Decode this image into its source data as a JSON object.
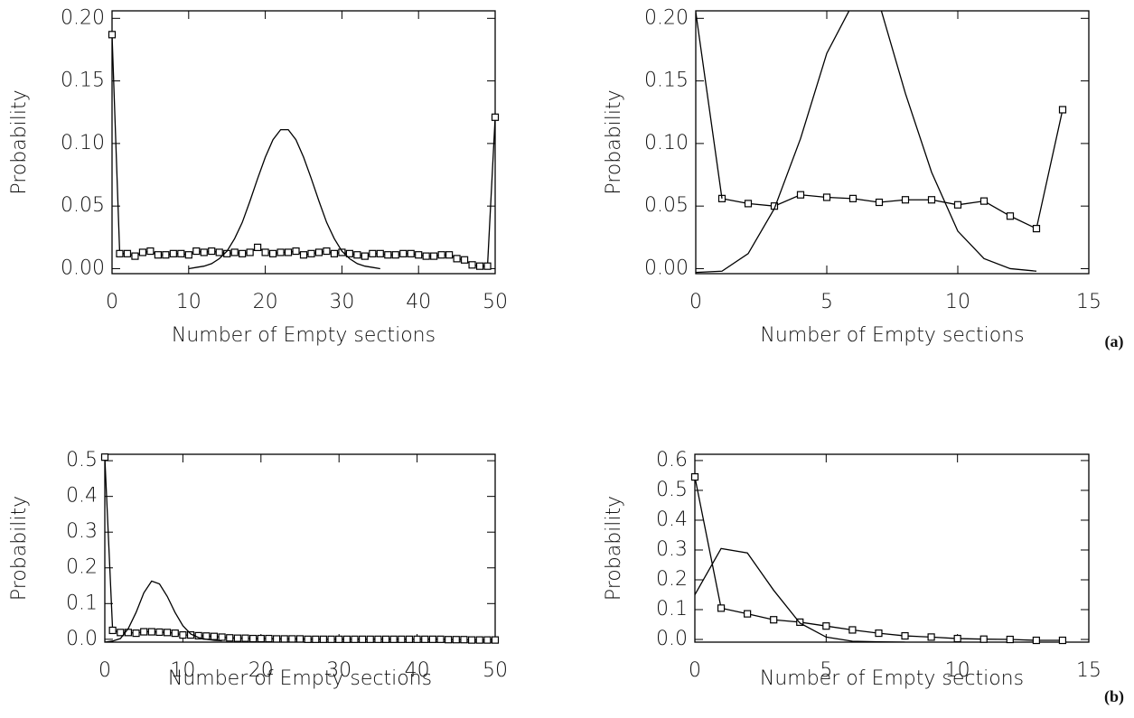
{
  "chart_data": [
    {
      "type": "line",
      "xlabel": "Number of Empty sections",
      "ylabel": "Probability",
      "xlim": [
        0,
        50
      ],
      "ylim": [
        -0.004,
        0.206
      ],
      "xticks": [
        0,
        10,
        20,
        30,
        40,
        50
      ],
      "yticks": [
        {
          "value": 0,
          "label": "0.00"
        },
        0.05,
        {
          "value": 0.1,
          "label": "0.10"
        },
        0.15,
        {
          "value": 0.2,
          "label": "0.20"
        }
      ],
      "series": [
        {
          "color": "#000000",
          "marker": "square",
          "x": [
            0,
            1,
            2,
            3,
            4,
            5,
            6,
            7,
            8,
            9,
            10,
            11,
            12,
            13,
            14,
            15,
            16,
            17,
            18,
            19,
            20,
            21,
            22,
            23,
            24,
            25,
            26,
            27,
            28,
            29,
            30,
            31,
            32,
            33,
            34,
            35,
            36,
            37,
            38,
            39,
            40,
            41,
            42,
            43,
            44,
            45,
            46,
            47,
            48,
            49,
            50
          ],
          "values": [
            0.187,
            0.012,
            0.012,
            0.01,
            0.013,
            0.014,
            0.011,
            0.011,
            0.012,
            0.012,
            0.011,
            0.014,
            0.013,
            0.014,
            0.013,
            0.012,
            0.013,
            0.012,
            0.013,
            0.017,
            0.013,
            0.012,
            0.013,
            0.013,
            0.014,
            0.011,
            0.012,
            0.013,
            0.014,
            0.012,
            0.013,
            0.012,
            0.011,
            0.01,
            0.012,
            0.012,
            0.011,
            0.011,
            0.012,
            0.012,
            0.011,
            0.01,
            0.01,
            0.011,
            0.011,
            0.008,
            0.007,
            0.003,
            0.002,
            0.002,
            0.121
          ]
        },
        {
          "color": "#000000",
          "marker": "none",
          "x": [
            10,
            11,
            12,
            13,
            14,
            15,
            16,
            17,
            18,
            19,
            20,
            21,
            22,
            23,
            24,
            25,
            26,
            27,
            28,
            29,
            30,
            31,
            32,
            33,
            34,
            35
          ],
          "values": [
            0,
            0.001,
            0.002,
            0.004,
            0.008,
            0.014,
            0.024,
            0.037,
            0.054,
            0.072,
            0.089,
            0.103,
            0.111,
            0.111,
            0.103,
            0.089,
            0.072,
            0.054,
            0.037,
            0.024,
            0.014,
            0.008,
            0.004,
            0.002,
            0.001,
            0
          ]
        }
      ]
    },
    {
      "type": "line",
      "xlabel": "Number of Empty sections",
      "ylabel": "Probability",
      "annotation": "(a)",
      "xlim": [
        0,
        15
      ],
      "ylim": [
        -0.004,
        0.206
      ],
      "xticks": [
        0,
        5,
        10,
        15
      ],
      "yticks": [
        {
          "value": 0,
          "label": "0.00"
        },
        0.05,
        {
          "value": 0.1,
          "label": "0.10"
        },
        0.15,
        {
          "value": 0.2,
          "label": "0.20"
        }
      ],
      "series": [
        {
          "color": "#000000",
          "marker": "square",
          "x": [
            1,
            2,
            3,
            4,
            5,
            6,
            7,
            8,
            9,
            10,
            11,
            12,
            13,
            14
          ],
          "values": [
            0.056,
            0.052,
            0.05,
            0.059,
            0.057,
            0.056,
            0.053,
            0.055,
            0.055,
            0.051,
            0.054,
            0.042,
            0.032,
            0.127
          ]
        },
        {
          "color": "#000000",
          "marker": "none",
          "x": [
            0,
            1,
            2,
            3,
            4,
            5,
            6,
            7,
            8,
            9,
            10,
            11,
            12,
            13
          ],
          "values": [
            -0.003,
            -0.002,
            0.012,
            0.048,
            0.104,
            0.172,
            0.212,
            0.212,
            0.14,
            0.077,
            0.03,
            0.008,
            0.0,
            -0.002
          ]
        },
        {
          "color": "#000000",
          "marker": "none",
          "x": [
            0,
            1
          ],
          "values": [
            0.205,
            0.056
          ]
        }
      ]
    },
    {
      "type": "line",
      "xlabel": "Number of Empty sections",
      "ylabel": "Probability",
      "xlim": [
        0,
        50
      ],
      "ylim": [
        -0.008,
        0.518
      ],
      "xticks": [
        0,
        10,
        20,
        30,
        40,
        50
      ],
      "yticks": [
        {
          "value": 0,
          "label": "0.0"
        },
        0.1,
        0.2,
        0.3,
        0.4,
        0.5
      ],
      "series": [
        {
          "color": "#000000",
          "marker": "square",
          "x": [
            0,
            1,
            2,
            3,
            4,
            5,
            6,
            7,
            8,
            9,
            10,
            11,
            12,
            13,
            14,
            15,
            16,
            17,
            18,
            19,
            20,
            21,
            22,
            23,
            24,
            25,
            26,
            27,
            28,
            29,
            30,
            31,
            32,
            33,
            34,
            35,
            36,
            37,
            38,
            39,
            40,
            41,
            42,
            43,
            44,
            45,
            46,
            47,
            48,
            49,
            50
          ],
          "values": [
            0.51,
            0.025,
            0.019,
            0.019,
            0.017,
            0.021,
            0.021,
            0.02,
            0.019,
            0.017,
            0.012,
            0.012,
            0.01,
            0.009,
            0.008,
            0.006,
            0.004,
            0.003,
            0.003,
            0.002,
            0.002,
            0.002,
            0.001,
            0.001,
            0.001,
            0.001,
            0,
            0,
            0,
            0,
            0,
            0,
            0,
            0,
            0,
            0,
            0,
            0,
            0,
            0,
            0,
            0,
            0,
            0,
            -0.001,
            -0.001,
            -0.001,
            -0.002,
            -0.002,
            -0.002,
            -0.002
          ]
        },
        {
          "color": "#000000",
          "marker": "none",
          "x": [
            0,
            1,
            2,
            3,
            4,
            5,
            6,
            7,
            8,
            9,
            10,
            11,
            12,
            13,
            14,
            15
          ],
          "values": [
            -0.008,
            -0.005,
            0.002,
            0.03,
            0.075,
            0.13,
            0.163,
            0.155,
            0.12,
            0.075,
            0.038,
            0.015,
            0.005,
            0,
            -0.003,
            -0.004
          ]
        }
      ]
    },
    {
      "type": "line",
      "xlabel": "Number of Empty sections",
      "ylabel": "Probability",
      "annotation": "(b)",
      "xlim": [
        0,
        15
      ],
      "ylim": [
        -0.009,
        0.621
      ],
      "xticks": [
        0,
        5,
        10,
        15
      ],
      "yticks": [
        {
          "value": 0,
          "label": "0.0"
        },
        0.1,
        0.2,
        0.3,
        0.4,
        0.5,
        0.6
      ],
      "series": [
        {
          "color": "#000000",
          "marker": "square",
          "x": [
            0,
            1,
            2,
            3,
            4,
            5,
            6,
            7,
            8,
            9,
            10,
            11,
            12,
            13,
            14
          ],
          "values": [
            0.545,
            0.105,
            0.086,
            0.066,
            0.058,
            0.045,
            0.032,
            0.021,
            0.012,
            0.008,
            0.003,
            0.001,
            0,
            -0.003,
            -0.003
          ]
        },
        {
          "color": "#000000",
          "marker": "none",
          "x": [
            0,
            1,
            2,
            3,
            4,
            5,
            6,
            7,
            8
          ],
          "values": [
            0.15,
            0.305,
            0.29,
            0.165,
            0.055,
            0.008,
            -0.006,
            -0.008,
            -0.009
          ]
        }
      ]
    }
  ]
}
